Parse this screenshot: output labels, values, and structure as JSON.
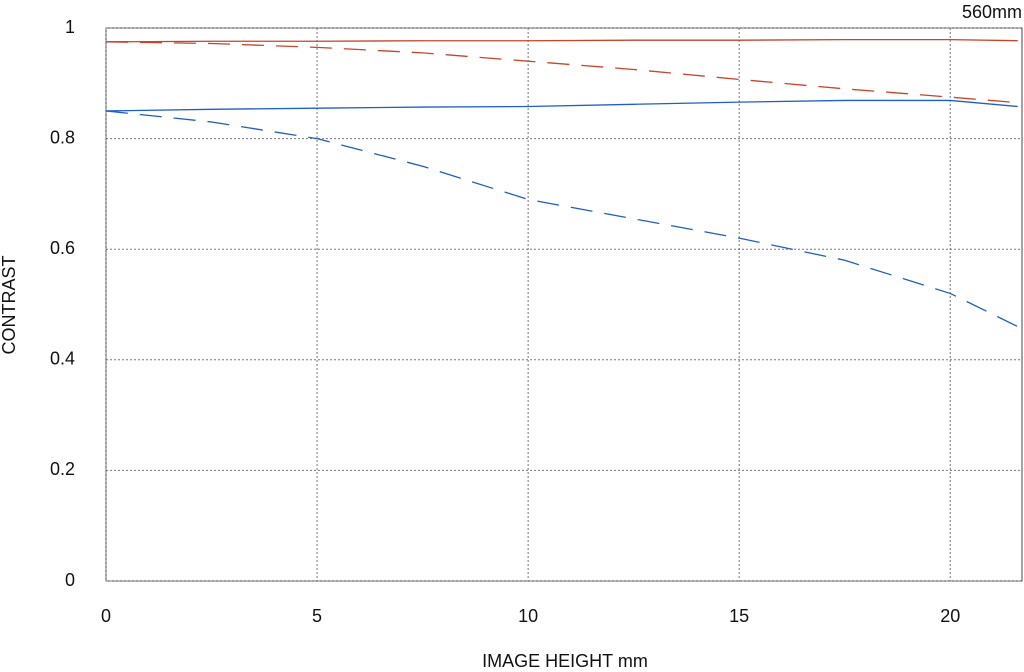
{
  "chart_data": {
    "type": "line",
    "title": "560mm",
    "x_label": "IMAGE HEIGHT  mm",
    "y_label": "CONTRAST",
    "x": [
      0,
      2.5,
      5,
      7.5,
      10,
      12.5,
      15,
      17.5,
      20,
      21.6
    ],
    "series": [
      {
        "color": "#c8442a",
        "dashed": false,
        "values": [
          0.975,
          0.976,
          0.976,
          0.977,
          0.977,
          0.978,
          0.978,
          0.979,
          0.979,
          0.977
        ]
      },
      {
        "color": "#c8442a",
        "dashed": true,
        "values": [
          0.975,
          0.972,
          0.965,
          0.955,
          0.94,
          0.925,
          0.907,
          0.89,
          0.875,
          0.865
        ]
      },
      {
        "color": "#1f5fc4",
        "dashed": false,
        "values": [
          0.85,
          0.853,
          0.855,
          0.857,
          0.858,
          0.862,
          0.866,
          0.869,
          0.869,
          0.858
        ]
      },
      {
        "color": "#1f5fc4",
        "dashed": true,
        "values": [
          0.85,
          0.83,
          0.8,
          0.75,
          0.69,
          0.655,
          0.62,
          0.58,
          0.52,
          0.46
        ]
      }
    ],
    "xlim": [
      0,
      21.7
    ],
    "ylim": [
      0,
      1
    ],
    "xticks": [
      0,
      5,
      10,
      15,
      20
    ],
    "yticks": [
      0,
      0.2,
      0.4,
      0.6,
      0.8,
      1
    ],
    "grid": true
  }
}
